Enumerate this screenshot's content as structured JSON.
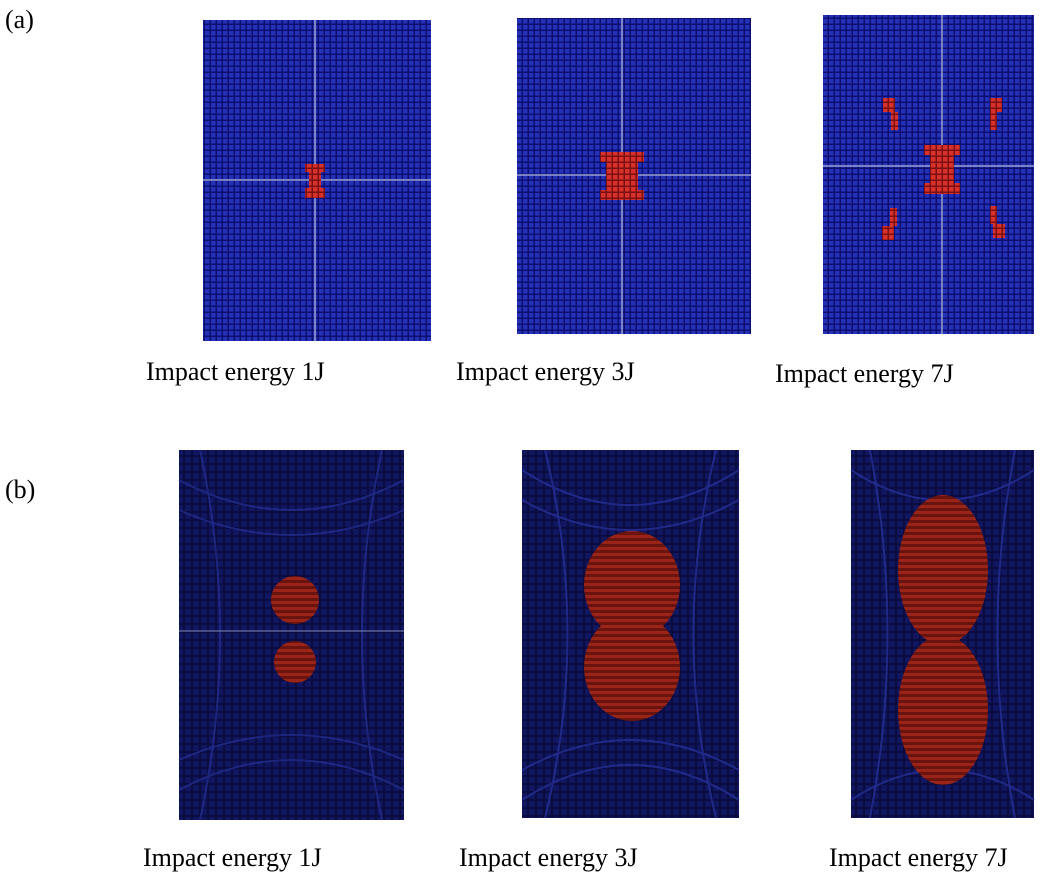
{
  "panels": [
    {
      "label": "(a)",
      "captions": [
        "Impact energy 1J",
        "Impact energy 3J",
        "Impact energy 7J"
      ]
    },
    {
      "label": "(b)",
      "captions": [
        "Impact energy 1J",
        "Impact energy 3J",
        "Impact energy 7J"
      ]
    }
  ]
}
